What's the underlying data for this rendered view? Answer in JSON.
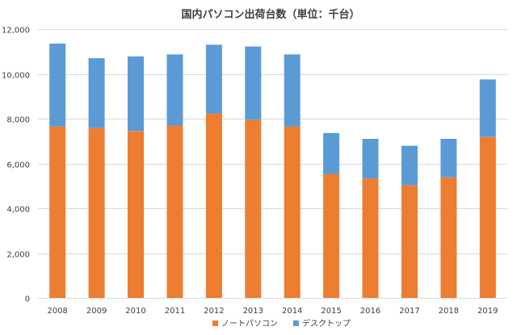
{
  "chart_data": {
    "type": "bar",
    "stacked": true,
    "title": "国内パソコン出荷台数（単位：千台）",
    "xlabel": "",
    "ylabel": "",
    "categories": [
      "2008",
      "2009",
      "2010",
      "2011",
      "2012",
      "2013",
      "2014",
      "2015",
      "2016",
      "2017",
      "2018",
      "2019"
    ],
    "series": [
      {
        "name": "ノートパソコン",
        "color": "#ED7D31",
        "values": [
          7650,
          7580,
          7450,
          7700,
          8230,
          7950,
          7650,
          5530,
          5330,
          5030,
          5380,
          7180
        ]
      },
      {
        "name": "デスクトップ",
        "color": "#5B9BD5",
        "values": [
          3700,
          3120,
          3330,
          3170,
          3070,
          3270,
          3220,
          1830,
          1770,
          1760,
          1720,
          2570
        ]
      }
    ],
    "ylim": [
      0,
      12000
    ],
    "yticks": [
      0,
      2000,
      4000,
      6000,
      8000,
      10000,
      12000
    ],
    "ytick_labels": [
      "0",
      "2,000",
      "4,000",
      "6,000",
      "8,000",
      "10,000",
      "12,000"
    ],
    "grid": true,
    "gridline_color": "#D9D9D9",
    "legend_position": "bottom"
  }
}
